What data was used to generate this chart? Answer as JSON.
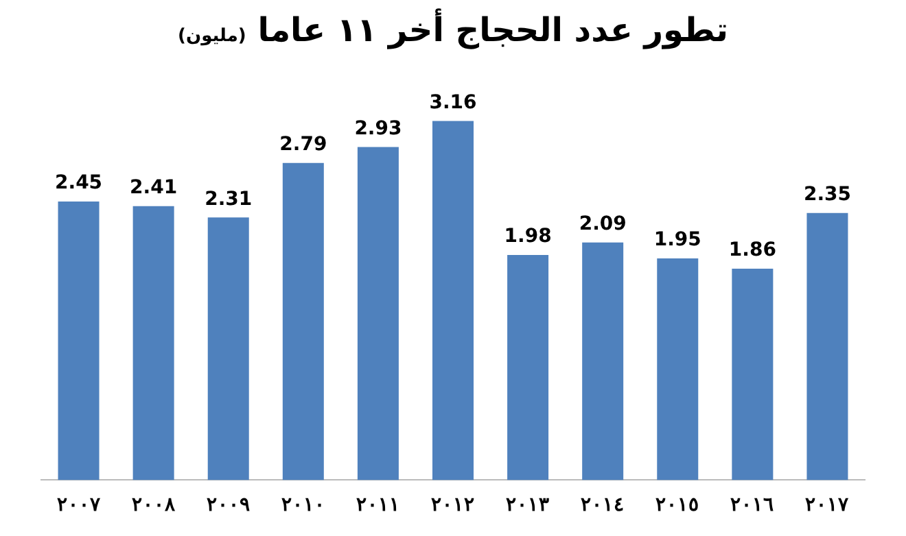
{
  "chart_data": {
    "type": "bar",
    "title": "تطور عدد الحجاج أخر ١١ عاما",
    "subtitle": "(مليون)",
    "categories": [
      "٢٠٠٧",
      "٢٠٠٨",
      "٢٠٠٩",
      "٢٠١٠",
      "٢٠١١",
      "٢٠١٢",
      "٢٠١٣",
      "٢٠١٤",
      "٢٠١٥",
      "٢٠١٦",
      "٢٠١٧"
    ],
    "values": [
      2.45,
      2.41,
      2.31,
      2.79,
      2.93,
      3.16,
      1.98,
      2.09,
      1.95,
      1.86,
      2.35
    ],
    "color": "#4f81bd",
    "data_labels": true,
    "grid": false,
    "legend": false,
    "tick_labels": "x"
  }
}
